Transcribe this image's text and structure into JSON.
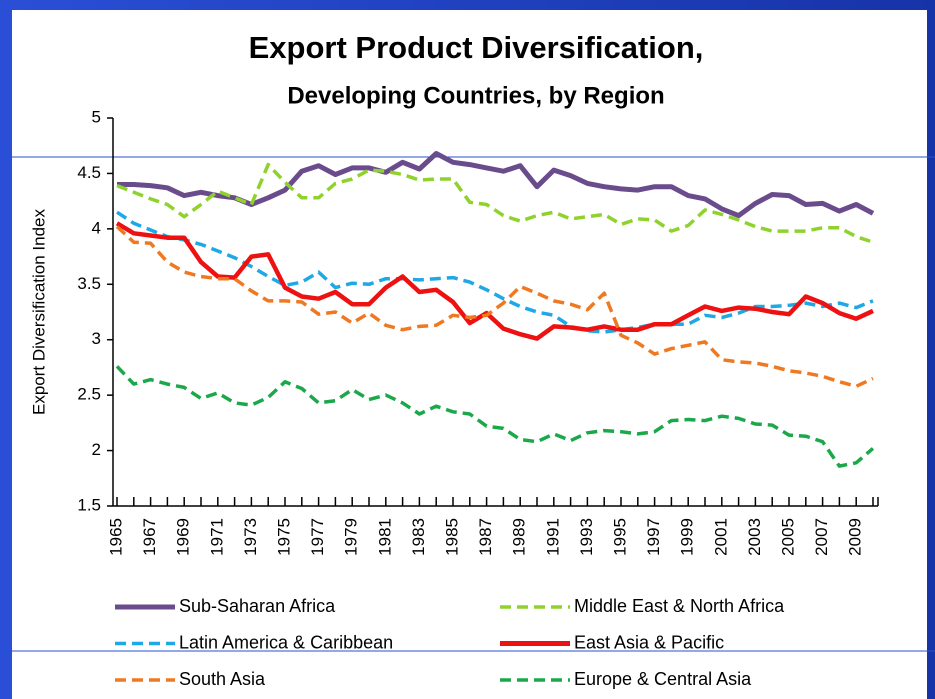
{
  "chart_data": {
    "type": "line",
    "title": "Export Product Diversification,",
    "subtitle": "Developing Countries, by Region",
    "y_label": "Export Diversification Index",
    "categories": [
      "1965",
      null,
      "1967",
      null,
      "1969",
      null,
      "1971",
      null,
      "1973",
      null,
      "1975",
      null,
      "1977",
      null,
      "1979",
      null,
      "1981",
      null,
      "1983",
      null,
      "1985",
      null,
      "1987",
      null,
      "1989",
      null,
      "1991",
      null,
      "1993",
      null,
      "1995",
      null,
      "1997",
      null,
      "1999",
      null,
      "2001",
      null,
      "2003",
      null,
      "2005",
      null,
      "2007",
      null,
      "2009",
      null
    ],
    "ylim": [
      1.5,
      5
    ],
    "yticks": [
      1.5,
      2,
      2.5,
      3,
      3.5,
      4,
      4.5,
      5
    ],
    "series": [
      {
        "name": "Sub-Saharan Africa",
        "color": "#6a4c8c",
        "dashed": false,
        "values": [
          4.4,
          4.4,
          4.39,
          4.37,
          4.3,
          4.33,
          4.3,
          4.28,
          4.22,
          4.28,
          4.35,
          4.52,
          4.57,
          4.49,
          4.55,
          4.55,
          4.51,
          4.6,
          4.54,
          4.68,
          4.6,
          4.58,
          4.55,
          4.52,
          4.57,
          4.38,
          4.53,
          4.48,
          4.41,
          4.38,
          4.36,
          4.35,
          4.38,
          4.38,
          4.3,
          4.27,
          4.18,
          4.12,
          4.23,
          4.31,
          4.3,
          4.22,
          4.23,
          4.16,
          4.22,
          4.14
        ]
      },
      {
        "name": "Middle East & North Africa",
        "color": "#8fd22c",
        "dashed": true,
        "values": [
          4.39,
          4.33,
          4.27,
          4.22,
          4.11,
          4.22,
          4.34,
          4.28,
          4.22,
          4.58,
          4.42,
          4.28,
          4.28,
          4.41,
          4.45,
          4.53,
          4.52,
          4.49,
          4.44,
          4.45,
          4.45,
          4.24,
          4.22,
          4.12,
          4.07,
          4.12,
          4.15,
          4.09,
          4.11,
          4.13,
          4.04,
          4.09,
          4.08,
          3.98,
          4.03,
          4.17,
          4.13,
          4.08,
          4.02,
          3.98,
          3.98,
          3.98,
          4.01,
          4.01,
          3.93,
          3.88
        ]
      },
      {
        "name": "Latin America & Caribbean",
        "color": "#1ea8e6",
        "dashed": true,
        "values": [
          4.15,
          4.05,
          3.99,
          3.93,
          3.9,
          3.86,
          3.8,
          3.74,
          3.66,
          3.57,
          3.49,
          3.52,
          3.61,
          3.47,
          3.51,
          3.5,
          3.55,
          3.55,
          3.54,
          3.55,
          3.56,
          3.52,
          3.45,
          3.37,
          3.3,
          3.25,
          3.22,
          3.12,
          3.08,
          3.07,
          3.09,
          3.11,
          3.14,
          3.14,
          3.14,
          3.22,
          3.2,
          3.24,
          3.3,
          3.3,
          3.31,
          3.33,
          3.3,
          3.33,
          3.29,
          3.35
        ]
      },
      {
        "name": "East Asia & Pacific",
        "color": "#ee1111",
        "dashed": false,
        "values": [
          4.05,
          3.96,
          3.94,
          3.92,
          3.92,
          3.7,
          3.57,
          3.56,
          3.75,
          3.77,
          3.47,
          3.39,
          3.37,
          3.43,
          3.32,
          3.32,
          3.47,
          3.57,
          3.43,
          3.45,
          3.34,
          3.15,
          3.24,
          3.1,
          3.05,
          3.01,
          3.12,
          3.11,
          3.09,
          3.12,
          3.09,
          3.09,
          3.14,
          3.14,
          3.22,
          3.3,
          3.26,
          3.29,
          3.28,
          3.25,
          3.23,
          3.39,
          3.33,
          3.24,
          3.19,
          3.26
        ]
      },
      {
        "name": "South Asia",
        "color": "#f07820",
        "dashed": true,
        "values": [
          4.02,
          3.88,
          3.87,
          3.7,
          3.61,
          3.57,
          3.55,
          3.55,
          3.44,
          3.35,
          3.35,
          3.34,
          3.23,
          3.25,
          3.15,
          3.24,
          3.13,
          3.09,
          3.12,
          3.13,
          3.22,
          3.2,
          3.22,
          3.33,
          3.48,
          3.42,
          3.35,
          3.32,
          3.27,
          3.42,
          3.04,
          2.97,
          2.87,
          2.92,
          2.95,
          2.98,
          2.82,
          2.8,
          2.79,
          2.76,
          2.72,
          2.7,
          2.67,
          2.62,
          2.58,
          2.65
        ]
      },
      {
        "name": "Europe & Central Asia",
        "color": "#1aa84a",
        "dashed": true,
        "values": [
          2.76,
          2.6,
          2.64,
          2.6,
          2.57,
          2.47,
          2.52,
          2.43,
          2.41,
          2.48,
          2.62,
          2.56,
          2.43,
          2.45,
          2.55,
          2.46,
          2.5,
          2.43,
          2.33,
          2.4,
          2.35,
          2.33,
          2.22,
          2.2,
          2.1,
          2.08,
          2.15,
          2.09,
          2.16,
          2.18,
          2.17,
          2.15,
          2.17,
          2.27,
          2.28,
          2.27,
          2.31,
          2.29,
          2.24,
          2.23,
          2.14,
          2.13,
          2.08,
          1.86,
          1.89,
          2.02
        ]
      }
    ]
  }
}
